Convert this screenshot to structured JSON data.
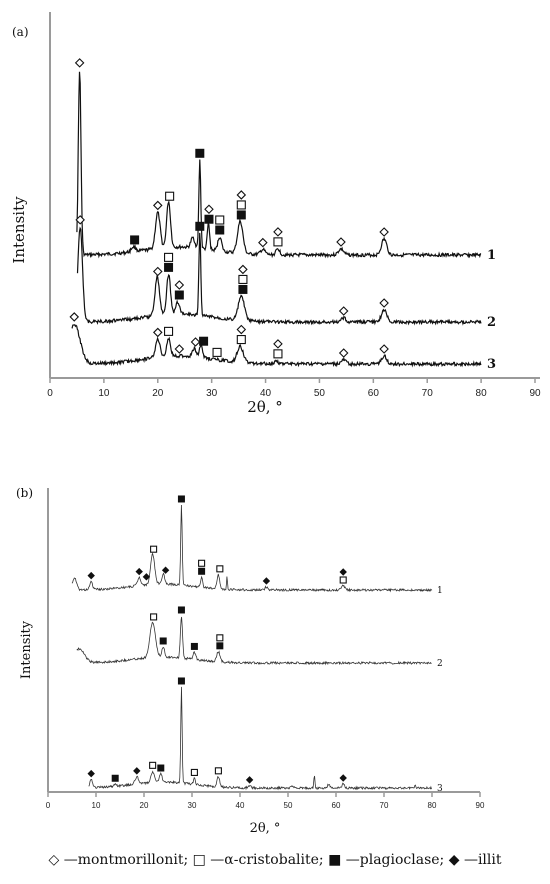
{
  "chart_data": [
    {
      "panel": "(a)",
      "type": "line",
      "xlabel": "2θ, °",
      "ylabel": "Intensity",
      "xlim": [
        0,
        90
      ],
      "x_ticks": [
        0,
        10,
        20,
        30,
        40,
        50,
        60,
        70,
        80,
        90
      ],
      "series": [
        {
          "name": "1",
          "peaks": [
            {
              "x": 5.5,
              "h": 185,
              "w": 0.35
            },
            {
              "x": 15.5,
              "h": 5,
              "w": 0.6
            },
            {
              "x": 20,
              "h": 36,
              "w": 0.6
            },
            {
              "x": 22,
              "h": 46,
              "w": 0.5
            },
            {
              "x": 26.5,
              "h": 10,
              "w": 0.5
            },
            {
              "x": 27.8,
              "h": 88,
              "w": 0.25
            },
            {
              "x": 29.4,
              "h": 26,
              "w": 0.3
            },
            {
              "x": 31.5,
              "h": 14,
              "w": 0.5
            },
            {
              "x": 35.3,
              "h": 32,
              "w": 0.7
            },
            {
              "x": 39.5,
              "h": 5,
              "w": 0.6
            },
            {
              "x": 42.3,
              "h": 6,
              "w": 0.5
            },
            {
              "x": 54,
              "h": 6,
              "w": 0.7
            },
            {
              "x": 62,
              "h": 16,
              "w": 0.7
            }
          ]
        },
        {
          "name": "2",
          "peaks": [
            {
              "x": 5.6,
              "h": 95,
              "w": 0.6
            },
            {
              "x": 19.9,
              "h": 38,
              "w": 0.6
            },
            {
              "x": 22,
              "h": 40,
              "w": 0.5
            },
            {
              "x": 23.7,
              "h": 12,
              "w": 0.5
            },
            {
              "x": 27.8,
              "h": 82,
              "w": 0.25
            },
            {
              "x": 35.5,
              "h": 24,
              "w": 0.8
            },
            {
              "x": 54.5,
              "h": 4,
              "w": 0.6
            },
            {
              "x": 62,
              "h": 12,
              "w": 0.7
            }
          ]
        },
        {
          "name": "3",
          "peaks": [
            {
              "x": 4.5,
              "h": 40,
              "w": 1.5
            },
            {
              "x": 20,
              "h": 18,
              "w": 0.6
            },
            {
              "x": 22,
              "h": 18,
              "w": 0.5
            },
            {
              "x": 26.8,
              "h": 8,
              "w": 0.5
            },
            {
              "x": 28,
              "h": 12,
              "w": 0.4
            },
            {
              "x": 35.3,
              "h": 16,
              "w": 0.8
            },
            {
              "x": 42,
              "h": 3,
              "w": 0.5
            },
            {
              "x": 54.5,
              "h": 4,
              "w": 0.6
            },
            {
              "x": 62,
              "h": 8,
              "w": 0.7
            }
          ]
        }
      ],
      "markers": [
        {
          "s": "1",
          "x": 5.5,
          "m": "o"
        },
        {
          "s": "1",
          "x": 15.7,
          "m": "P"
        },
        {
          "s": "1",
          "x": 20,
          "m": "o"
        },
        {
          "s": "1",
          "x": 22.2,
          "m": "C"
        },
        {
          "s": "1",
          "x": 27.8,
          "m": "P"
        },
        {
          "s": "1",
          "x": 29.5,
          "m": "P"
        },
        {
          "s": "1",
          "x": 29.5,
          "m": "o"
        },
        {
          "s": "1",
          "x": 31.5,
          "m": "P"
        },
        {
          "s": "1",
          "x": 31.5,
          "m": "C"
        },
        {
          "s": "1",
          "x": 35.5,
          "m": "P"
        },
        {
          "s": "1",
          "x": 35.5,
          "m": "C"
        },
        {
          "s": "1",
          "x": 35.5,
          "m": "o"
        },
        {
          "s": "1",
          "x": 39.5,
          "m": "o"
        },
        {
          "s": "1",
          "x": 42.3,
          "m": "C"
        },
        {
          "s": "1",
          "x": 42.3,
          "m": "o"
        },
        {
          "s": "1",
          "x": 54,
          "m": "o"
        },
        {
          "s": "1",
          "x": 62,
          "m": "o"
        },
        {
          "s": "2",
          "x": 5.6,
          "m": "o"
        },
        {
          "s": "2",
          "x": 20,
          "m": "o"
        },
        {
          "s": "2",
          "x": 22,
          "m": "P"
        },
        {
          "s": "2",
          "x": 22,
          "m": "C"
        },
        {
          "s": "2",
          "x": 24,
          "m": "P"
        },
        {
          "s": "2",
          "x": 24,
          "m": "o"
        },
        {
          "s": "2",
          "x": 27.8,
          "m": "P"
        },
        {
          "s": "2",
          "x": 35.8,
          "m": "P"
        },
        {
          "s": "2",
          "x": 35.8,
          "m": "C"
        },
        {
          "s": "2",
          "x": 35.8,
          "m": "o"
        },
        {
          "s": "2",
          "x": 54.5,
          "m": "o"
        },
        {
          "s": "2",
          "x": 62,
          "m": "o"
        },
        {
          "s": "3",
          "x": 4.5,
          "m": "o"
        },
        {
          "s": "3",
          "x": 20,
          "m": "o"
        },
        {
          "s": "3",
          "x": 22,
          "m": "C"
        },
        {
          "s": "3",
          "x": 24,
          "m": "o"
        },
        {
          "s": "3",
          "x": 27,
          "m": "o"
        },
        {
          "s": "3",
          "x": 28.5,
          "m": "P"
        },
        {
          "s": "3",
          "x": 31,
          "m": "C"
        },
        {
          "s": "3",
          "x": 35.5,
          "m": "C"
        },
        {
          "s": "3",
          "x": 35.5,
          "m": "o"
        },
        {
          "s": "3",
          "x": 42.3,
          "m": "C"
        },
        {
          "s": "3",
          "x": 42.3,
          "m": "o"
        },
        {
          "s": "3",
          "x": 54.5,
          "m": "o"
        },
        {
          "s": "3",
          "x": 62,
          "m": "o"
        }
      ]
    },
    {
      "panel": "(b)",
      "type": "line",
      "xlabel": "2θ, °",
      "ylabel": "Intensity",
      "xlim": [
        0,
        90
      ],
      "x_ticks": [
        0,
        10,
        20,
        30,
        40,
        50,
        60,
        70,
        80,
        90
      ],
      "series": [
        {
          "name": "1",
          "peaks": [
            {
              "x": 5.5,
              "h": 12,
              "w": 0.6
            },
            {
              "x": 9,
              "h": 8,
              "w": 0.4
            },
            {
              "x": 19,
              "h": 8,
              "w": 0.5
            },
            {
              "x": 21.8,
              "h": 30,
              "w": 0.6
            },
            {
              "x": 24,
              "h": 10,
              "w": 0.4
            },
            {
              "x": 27.8,
              "h": 80,
              "w": 0.22
            },
            {
              "x": 32,
              "h": 10,
              "w": 0.3
            },
            {
              "x": 35.5,
              "h": 14,
              "w": 0.4
            },
            {
              "x": 37.3,
              "h": 12,
              "w": 0.15
            },
            {
              "x": 45.5,
              "h": 3,
              "w": 0.4
            },
            {
              "x": 61.5,
              "h": 4,
              "w": 0.5
            }
          ]
        },
        {
          "name": "2",
          "peaks": [
            {
              "x": 6.5,
              "h": 14,
              "w": 1.5
            },
            {
              "x": 21.8,
              "h": 35,
              "w": 0.8
            },
            {
              "x": 24,
              "h": 10,
              "w": 0.4
            },
            {
              "x": 27.8,
              "h": 42,
              "w": 0.3
            },
            {
              "x": 30.5,
              "h": 7,
              "w": 0.4
            },
            {
              "x": 35.5,
              "h": 10,
              "w": 0.5
            }
          ]
        },
        {
          "name": "3",
          "peaks": [
            {
              "x": 9,
              "h": 8,
              "w": 0.4
            },
            {
              "x": 14,
              "h": 2,
              "w": 0.4
            },
            {
              "x": 18.5,
              "h": 7,
              "w": 0.5
            },
            {
              "x": 21.8,
              "h": 11,
              "w": 0.5
            },
            {
              "x": 23.5,
              "h": 8,
              "w": 0.4
            },
            {
              "x": 27.8,
              "h": 96,
              "w": 0.2
            },
            {
              "x": 30.5,
              "h": 6,
              "w": 0.3
            },
            {
              "x": 35.5,
              "h": 10,
              "w": 0.4
            },
            {
              "x": 42,
              "h": 2,
              "w": 0.4
            },
            {
              "x": 51,
              "h": 2,
              "w": 0.4
            },
            {
              "x": 55.5,
              "h": 14,
              "w": 0.15
            },
            {
              "x": 58.5,
              "h": 4,
              "w": 0.3
            },
            {
              "x": 61.5,
              "h": 4,
              "w": 0.4
            },
            {
              "x": 76.5,
              "h": 3,
              "w": 0.2
            }
          ]
        }
      ],
      "markers": [
        {
          "s": "1",
          "x": 9,
          "m": "I"
        },
        {
          "s": "1",
          "x": 19,
          "m": "I"
        },
        {
          "s": "1",
          "x": 20.5,
          "m": "I"
        },
        {
          "s": "1",
          "x": 22,
          "m": "C"
        },
        {
          "s": "1",
          "x": 24.5,
          "m": "I"
        },
        {
          "s": "1",
          "x": 27.8,
          "m": "P"
        },
        {
          "s": "1",
          "x": 32,
          "m": "P"
        },
        {
          "s": "1",
          "x": 32,
          "m": "C"
        },
        {
          "s": "1",
          "x": 35.8,
          "m": "C"
        },
        {
          "s": "1",
          "x": 45.5,
          "m": "I"
        },
        {
          "s": "1",
          "x": 61.5,
          "m": "C"
        },
        {
          "s": "1",
          "x": 61.5,
          "m": "I"
        },
        {
          "s": "2",
          "x": 22,
          "m": "C"
        },
        {
          "s": "2",
          "x": 24,
          "m": "P"
        },
        {
          "s": "2",
          "x": 27.8,
          "m": "P"
        },
        {
          "s": "2",
          "x": 30.5,
          "m": "P"
        },
        {
          "s": "2",
          "x": 35.8,
          "m": "P"
        },
        {
          "s": "2",
          "x": 35.8,
          "m": "C"
        },
        {
          "s": "3",
          "x": 9,
          "m": "I"
        },
        {
          "s": "3",
          "x": 14,
          "m": "P"
        },
        {
          "s": "3",
          "x": 18.5,
          "m": "I"
        },
        {
          "s": "3",
          "x": 21.8,
          "m": "C"
        },
        {
          "s": "3",
          "x": 23.5,
          "m": "P"
        },
        {
          "s": "3",
          "x": 27.8,
          "m": "P"
        },
        {
          "s": "3",
          "x": 30.5,
          "m": "C"
        },
        {
          "s": "3",
          "x": 35.5,
          "m": "C"
        },
        {
          "s": "3",
          "x": 42,
          "m": "I"
        },
        {
          "s": "3",
          "x": 61.5,
          "m": "I"
        }
      ]
    }
  ],
  "legend": {
    "montmorillonit": "◇ —montmorillonit;",
    "cristobalite": "□ —α-cristobalite;",
    "plagioclase": "■ —plagioclase;",
    "illit": "◆ —illit"
  }
}
